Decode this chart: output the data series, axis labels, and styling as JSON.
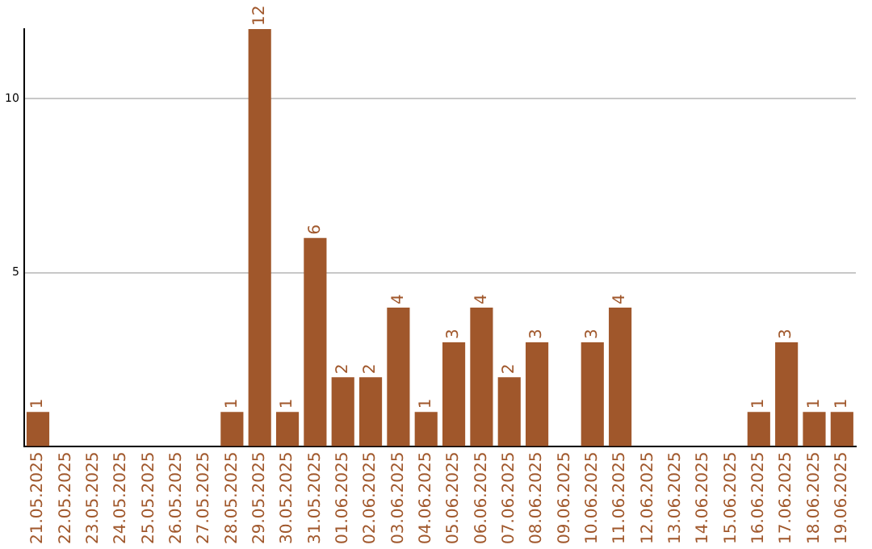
{
  "chart_data": {
    "type": "bar",
    "categories": [
      "21.05.2025",
      "22.05.2025",
      "23.05.2025",
      "24.05.2025",
      "25.05.2025",
      "26.05.2025",
      "27.05.2025",
      "28.05.2025",
      "29.05.2025",
      "30.05.2025",
      "31.05.2025",
      "01.06.2025",
      "02.06.2025",
      "03.06.2025",
      "04.06.2025",
      "05.06.2025",
      "06.06.2025",
      "07.06.2025",
      "08.06.2025",
      "09.06.2025",
      "10.06.2025",
      "11.06.2025",
      "12.06.2025",
      "13.06.2025",
      "14.06.2025",
      "15.06.2025",
      "16.06.2025",
      "17.06.2025",
      "18.06.2025",
      "19.06.2025"
    ],
    "values": [
      1,
      0,
      0,
      0,
      0,
      0,
      0,
      1,
      12,
      1,
      6,
      2,
      2,
      4,
      1,
      3,
      4,
      2,
      3,
      0,
      3,
      4,
      0,
      0,
      0,
      0,
      1,
      3,
      1,
      1
    ],
    "value_labels": [
      "1",
      null,
      null,
      null,
      null,
      null,
      null,
      "1",
      "12",
      "1",
      "6",
      "2",
      "2",
      "4",
      "1",
      "3",
      "4",
      "2",
      "3",
      null,
      "3",
      "4",
      null,
      null,
      null,
      null,
      "1",
      "3",
      "1",
      "1"
    ],
    "color": "#a0572b",
    "ylim": [
      0,
      12
    ],
    "yticks": [
      {
        "value": 0,
        "label": null
      },
      5,
      10
    ],
    "grid": "y",
    "legend": false
  }
}
